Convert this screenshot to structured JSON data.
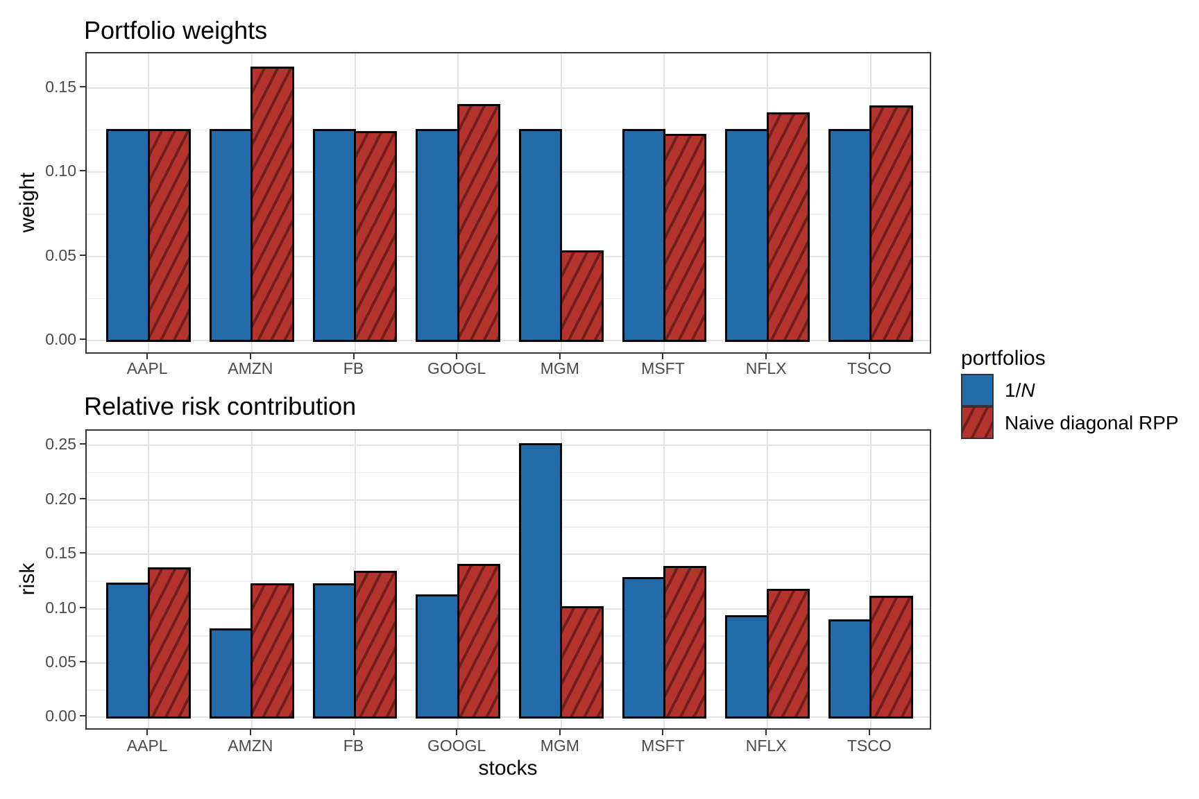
{
  "legend": {
    "title": "portfolios",
    "items": [
      {
        "label": "1/N",
        "label_prefix": "1/",
        "label_italic": "N",
        "swatch": "solid-blue"
      },
      {
        "label": "Naive diagonal RPP",
        "label_prefix": "Naive diagonal RPP",
        "label_italic": "",
        "swatch": "hatched-red"
      }
    ]
  },
  "colors": {
    "series_blue": "#236ca9",
    "series_red": "#b4332c",
    "red_hatch_stripe": "#6e1f1c",
    "bar_outline": "#000000",
    "panel_border": "#333333",
    "grid_major": "#e3e3e3",
    "grid_minor": "#efefef",
    "tick_label": "#4a4a4a",
    "background": "#ffffff"
  },
  "chart_data": [
    {
      "type": "bar",
      "title": "Portfolio weights",
      "xlabel": "",
      "ylabel": "weight",
      "categories": [
        "AAPL",
        "AMZN",
        "FB",
        "GOOGL",
        "MGM",
        "MSFT",
        "NFLX",
        "TSCO"
      ],
      "series": [
        {
          "name": "1/N",
          "values": [
            0.125,
            0.125,
            0.125,
            0.125,
            0.125,
            0.125,
            0.125,
            0.125
          ]
        },
        {
          "name": "Naive diagonal RPP",
          "values": [
            0.125,
            0.162,
            0.124,
            0.14,
            0.053,
            0.122,
            0.135,
            0.139
          ]
        }
      ],
      "yticks": [
        0.0,
        0.05,
        0.1,
        0.15
      ],
      "ytick_labels": [
        "0.00",
        "0.05",
        "0.10",
        "0.15"
      ],
      "ylim": [
        -0.0085,
        0.1705
      ],
      "grid": true,
      "legend_position": "right"
    },
    {
      "type": "bar",
      "title": "Relative risk contribution",
      "xlabel": "stocks",
      "ylabel": "risk",
      "categories": [
        "AAPL",
        "AMZN",
        "FB",
        "GOOGL",
        "MGM",
        "MSFT",
        "NFLX",
        "TSCO"
      ],
      "series": [
        {
          "name": "1/N",
          "values": [
            0.123,
            0.081,
            0.122,
            0.112,
            0.251,
            0.128,
            0.093,
            0.089
          ]
        },
        {
          "name": "Naive diagonal RPP",
          "values": [
            0.137,
            0.122,
            0.134,
            0.14,
            0.101,
            0.138,
            0.117,
            0.111
          ]
        }
      ],
      "yticks": [
        0.0,
        0.05,
        0.1,
        0.15,
        0.2,
        0.25
      ],
      "ytick_labels": [
        "0.00",
        "0.05",
        "0.10",
        "0.15",
        "0.20",
        "0.25"
      ],
      "ylim": [
        -0.0125,
        0.2635
      ],
      "grid": true,
      "legend_position": "right"
    }
  ]
}
